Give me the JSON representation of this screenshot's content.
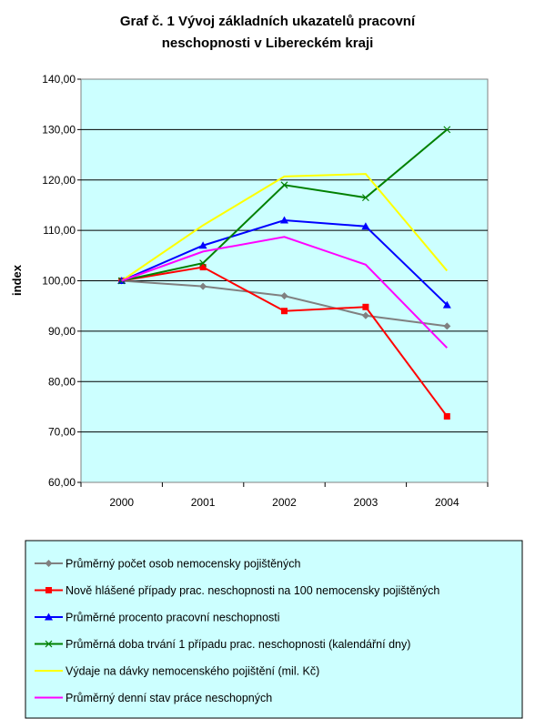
{
  "chart_data": {
    "type": "line",
    "title_line1": "Graf č. 1 Vývoj základních ukazatelů pracovní",
    "title_line2": "neschopnosti v Libereckém kraji",
    "ylabel": "index",
    "xlabel": "",
    "categories": [
      "2000",
      "2001",
      "2002",
      "2003",
      "2004"
    ],
    "ylim": [
      60,
      140
    ],
    "yticks": [
      "60,00",
      "70,00",
      "80,00",
      "90,00",
      "100,00",
      "110,00",
      "120,00",
      "130,00",
      "140,00"
    ],
    "grid": true,
    "legend_position": "bottom",
    "plot_background": "#ccffff",
    "series": [
      {
        "name": "Průměrný počet osob nemocensky pojištěných",
        "color": "#808080",
        "marker": "diamond",
        "values": [
          100,
          98.9,
          97,
          93.1,
          91
        ]
      },
      {
        "name": "Nově hlášené případy prac. neschopnosti na 100 nemocensky pojištěných",
        "color": "#ff0000",
        "marker": "square",
        "values": [
          100,
          102.7,
          94,
          94.8,
          73.1
        ]
      },
      {
        "name": "Průměrné procento pracovní neschopnosti",
        "color": "#0000ff",
        "marker": "triangle",
        "values": [
          100,
          107,
          112,
          110.8,
          95.2
        ]
      },
      {
        "name": "Průměrná doba trvání 1 případu prac. neschopnosti (kalendářní dny)",
        "color": "#008000",
        "marker": "x",
        "values": [
          100,
          103.5,
          119,
          116.5,
          130
        ]
      },
      {
        "name": "Výdaje na dávky nemocenského pojištění (mil. Kč)",
        "color": "#ffff00",
        "marker": "none",
        "values": [
          100,
          111,
          120.7,
          121.2,
          102
        ]
      },
      {
        "name": "Průměrný denní stav práce neschopných",
        "color": "#ff00ff",
        "marker": "none",
        "values": [
          100,
          105.8,
          108.7,
          103.2,
          86.7
        ]
      }
    ]
  }
}
